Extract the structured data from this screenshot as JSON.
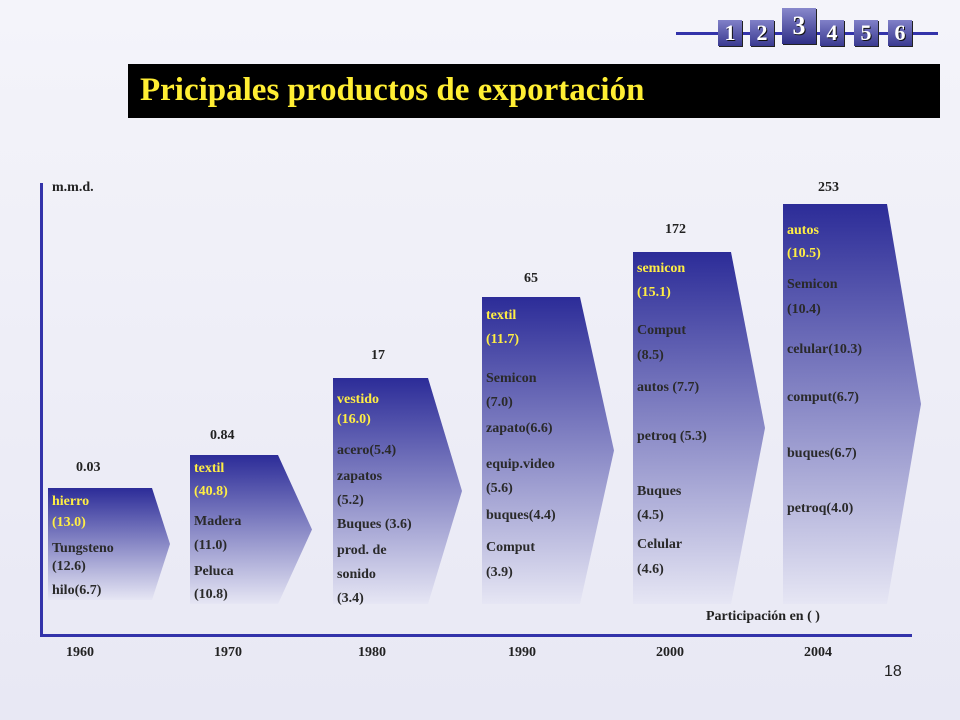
{
  "nav": {
    "pages": [
      "1",
      "2",
      "3",
      "4",
      "5",
      "6"
    ],
    "active": "3",
    "accent": "#3333aa"
  },
  "title": "Pricipales productos de exportación",
  "unit_label": "m.m.d.",
  "note": "Participación en ( )",
  "page_number": "18",
  "colors": {
    "bar_top": "#2c2c98",
    "bar_bottom": "#e6e6f4",
    "title_text": "#ffee33",
    "title_bg": "#000000"
  },
  "chart_data": {
    "type": "bar",
    "categories": [
      "1960",
      "1970",
      "1980",
      "1990",
      "2000",
      "2004"
    ],
    "values": [
      0.03,
      0.84,
      17,
      65,
      172,
      253
    ],
    "value_labels": [
      "0.03",
      "0.84",
      "17",
      "65",
      "172",
      "253"
    ],
    "ylabel": "m.m.d.",
    "bars": [
      {
        "items": [
          [
            "hierro",
            "(13.0)"
          ],
          [
            "Tungsteno",
            "(12.6)"
          ],
          [
            "hilo(6.7)"
          ]
        ]
      },
      {
        "items": [
          [
            "textil",
            "(40.8)"
          ],
          [
            "Madera",
            "(11.0)"
          ],
          [
            "Peluca",
            "(10.8)"
          ]
        ]
      },
      {
        "items": [
          [
            "vestido",
            "(16.0)"
          ],
          [
            "acero(5.4)"
          ],
          [
            "zapatos",
            "(5.2)"
          ],
          [
            "Buques (3.6)"
          ],
          [
            "prod. de",
            "sonido",
            "(3.4)"
          ]
        ]
      },
      {
        "items": [
          [
            "textil",
            "(11.7)"
          ],
          [
            "Semicon",
            "(7.0)"
          ],
          [
            "zapato(6.6)"
          ],
          [
            "equip.video",
            "(5.6)"
          ],
          [
            "buques(4.4)"
          ],
          [
            "Comput",
            "(3.9)"
          ]
        ]
      },
      {
        "items": [
          [
            "semicon",
            "(15.1)"
          ],
          [
            "Comput",
            "(8.5)"
          ],
          [
            "autos (7.7)"
          ],
          [
            "petroq (5.3)"
          ],
          [
            "Buques",
            "(4.5)"
          ],
          [
            "Celular",
            "(4.6)"
          ]
        ]
      },
      {
        "items": [
          [
            "autos",
            "(10.5)"
          ],
          [
            "Semicon",
            "(10.4)"
          ],
          [
            "celular(10.3)"
          ],
          [
            "comput(6.7)"
          ],
          [
            "buques(6.7)"
          ],
          [
            "petroq(4.0)"
          ]
        ]
      }
    ]
  }
}
